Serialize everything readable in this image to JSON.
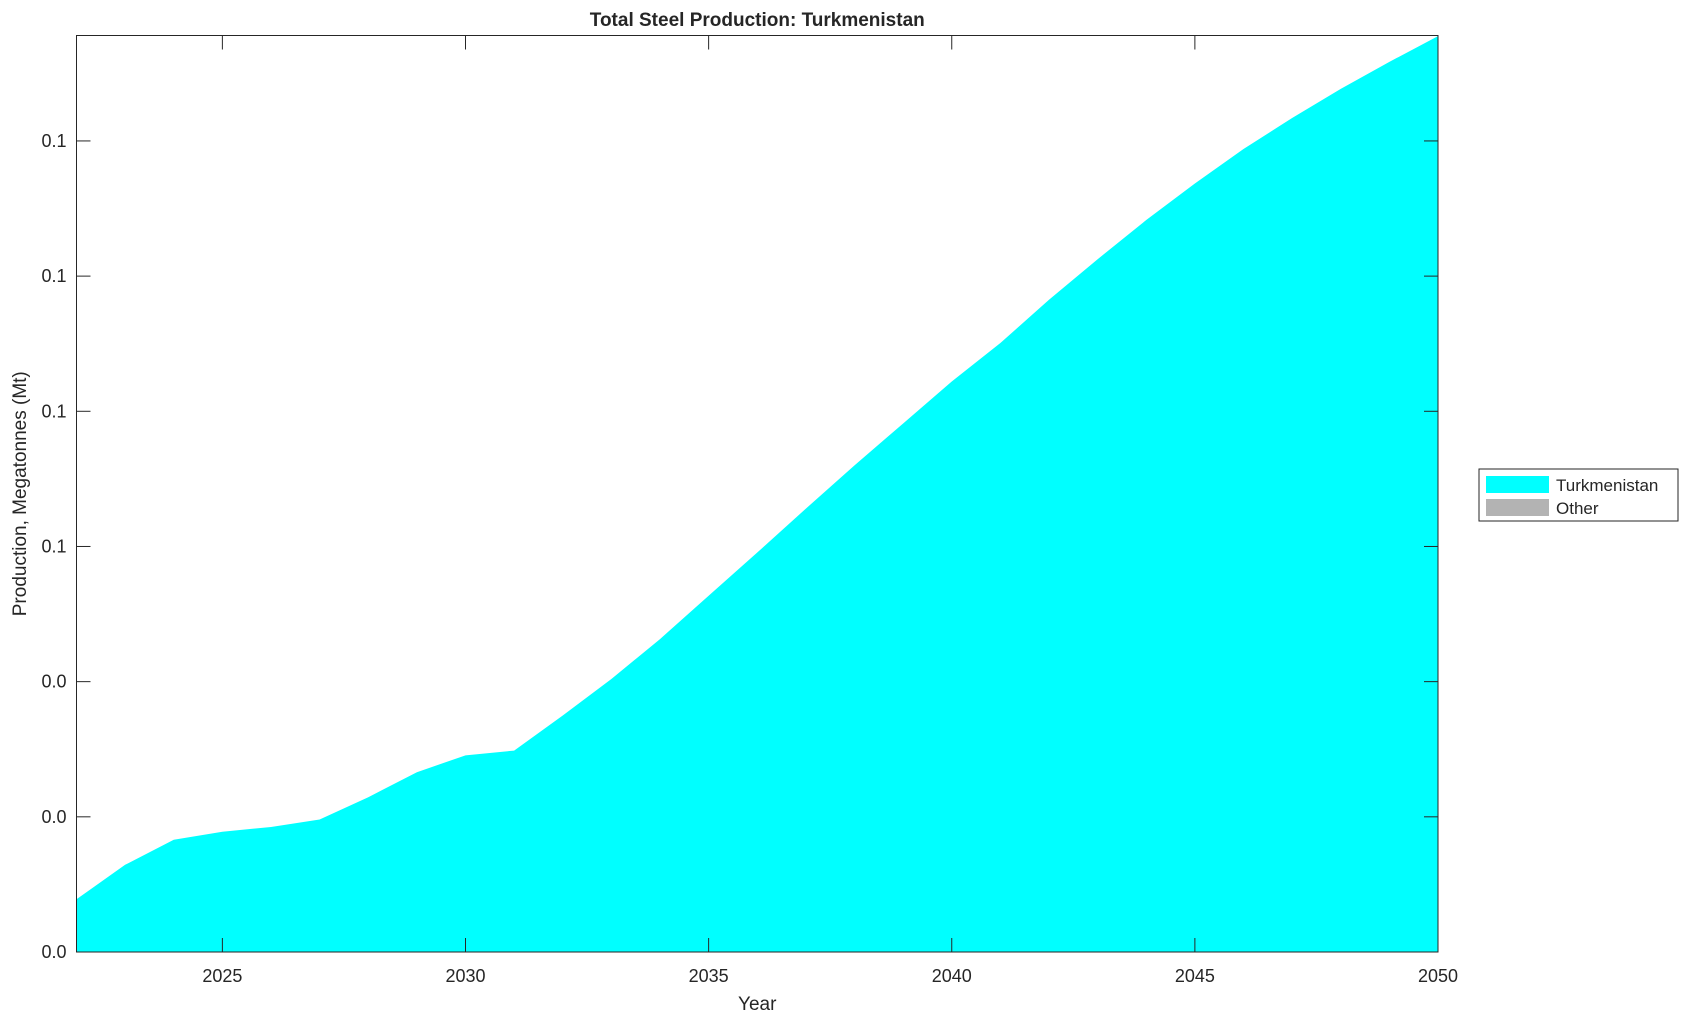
{
  "chart_data": {
    "type": "area",
    "title": "Total Steel Production: Turkmenistan",
    "xlabel": "Year",
    "ylabel": "Production, Megatonnes (Mt)",
    "xlim": [
      2022,
      2050
    ],
    "ylim": [
      0,
      0.1356
    ],
    "x_ticks": [
      2025,
      2030,
      2035,
      2040,
      2045,
      2050
    ],
    "y_ticks": [
      0,
      0.02,
      0.04,
      0.06,
      0.08,
      0.1,
      0.12
    ],
    "y_tick_labels": [
      "0.0",
      "0.0",
      "0.0",
      "0.1",
      "0.1",
      "0.1",
      "0.1"
    ],
    "grid": false,
    "legend_placement": "outside-right",
    "x": [
      2022,
      2023,
      2024,
      2025,
      2026,
      2027,
      2028,
      2029,
      2030,
      2031,
      2032,
      2033,
      2034,
      2035,
      2036,
      2037,
      2038,
      2039,
      2040,
      2041,
      2042,
      2043,
      2044,
      2045,
      2046,
      2047,
      2048,
      2049,
      2050
    ],
    "series": [
      {
        "name": "Turkmenistan",
        "color": "#00ffff",
        "values": [
          0.0078,
          0.0129,
          0.0166,
          0.0178,
          0.0185,
          0.0196,
          0.0229,
          0.0266,
          0.0291,
          0.0298,
          0.035,
          0.0404,
          0.0463,
          0.0527,
          0.0591,
          0.0656,
          0.072,
          0.0782,
          0.0844,
          0.0901,
          0.0965,
          0.1025,
          0.1083,
          0.1137,
          0.1188,
          0.1234,
          0.1277,
          0.1317,
          0.1355
        ]
      },
      {
        "name": "Other",
        "color": "#b3b3b3",
        "values": [
          0,
          0,
          0,
          0,
          0,
          0,
          0,
          0,
          0,
          0,
          0,
          0,
          0,
          0,
          0,
          0,
          0,
          0,
          0,
          0,
          0,
          0,
          0,
          0,
          0,
          0,
          0,
          0,
          0
        ]
      }
    ]
  }
}
